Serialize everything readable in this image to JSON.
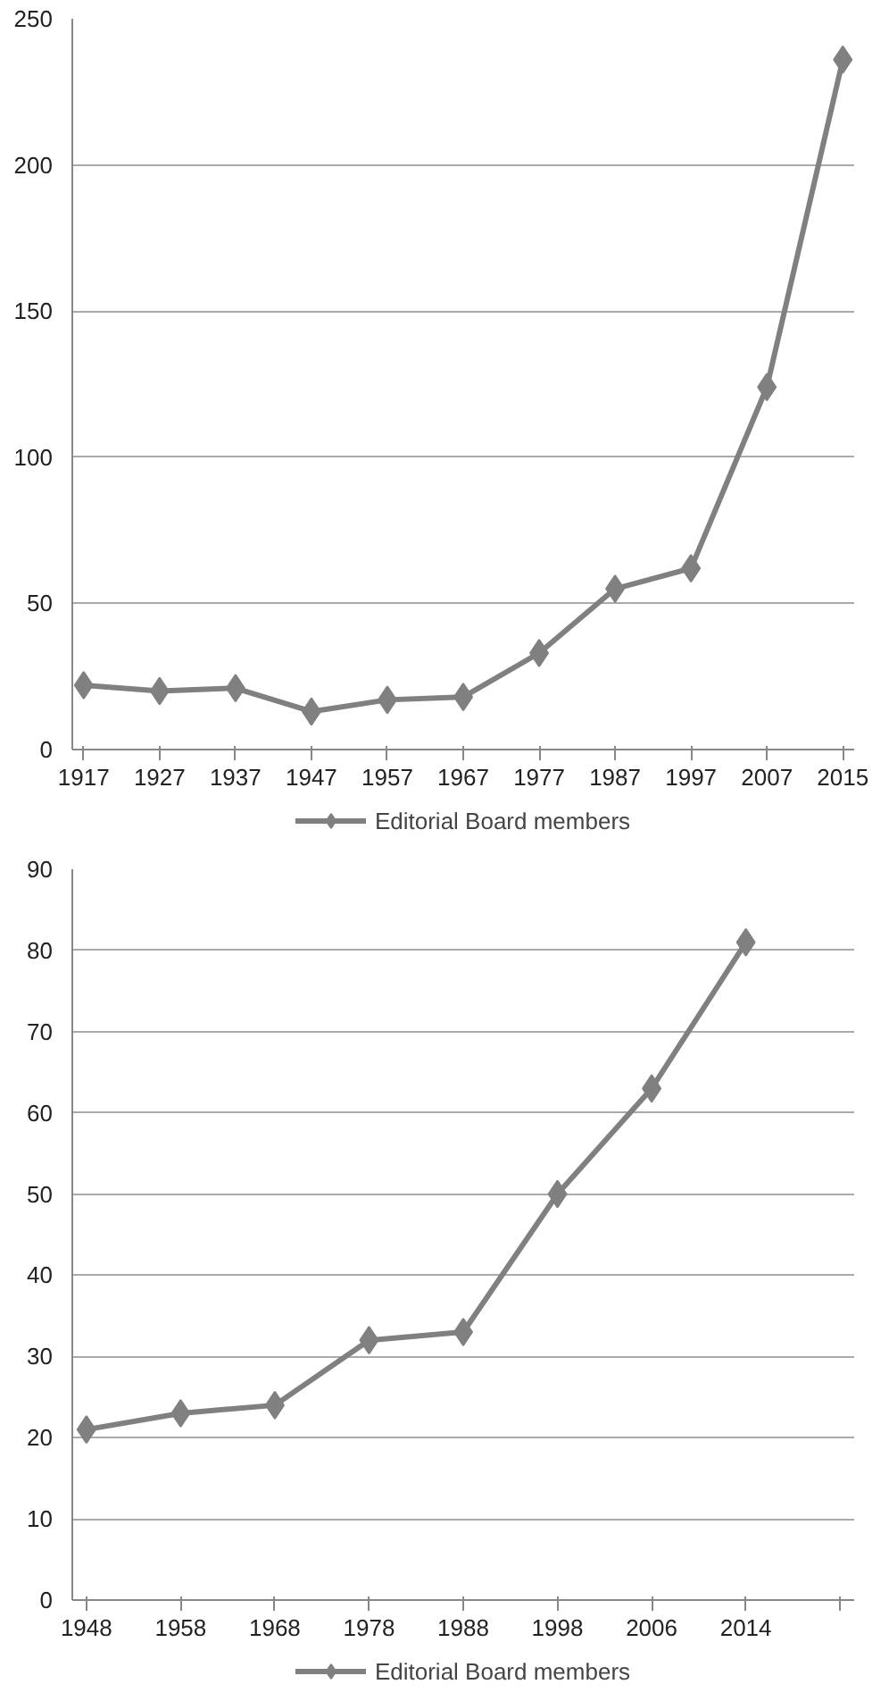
{
  "chart_data": [
    {
      "type": "line",
      "categories": [
        "1917",
        "1927",
        "1937",
        "1947",
        "1957",
        "1967",
        "1977",
        "1987",
        "1997",
        "2007",
        "2015"
      ],
      "series": [
        {
          "name": "Editorial Board members",
          "color": "#808080",
          "values": [
            22,
            20,
            21,
            13,
            17,
            18,
            33,
            55,
            62,
            124,
            236
          ]
        }
      ],
      "ylim": [
        0,
        250
      ],
      "yticks": [
        0,
        50,
        100,
        150,
        200,
        250
      ],
      "grid": "y",
      "legend": "bottom",
      "marker": "diamond",
      "line_style": "solid"
    },
    {
      "type": "line",
      "categories": [
        "1948",
        "1958",
        "1968",
        "1978",
        "1988",
        "1998",
        "2006",
        "2014",
        null
      ],
      "series": [
        {
          "name": "Editorial Board members",
          "color": "#808080",
          "values": [
            21,
            23,
            24,
            32,
            33,
            50,
            63,
            81,
            null
          ]
        }
      ],
      "ylim": [
        0,
        90
      ],
      "yticks": [
        0,
        10,
        20,
        30,
        40,
        50,
        60,
        70,
        80,
        90
      ],
      "grid": "y",
      "legend": "bottom",
      "marker": "diamond",
      "line_style": "solid"
    }
  ]
}
